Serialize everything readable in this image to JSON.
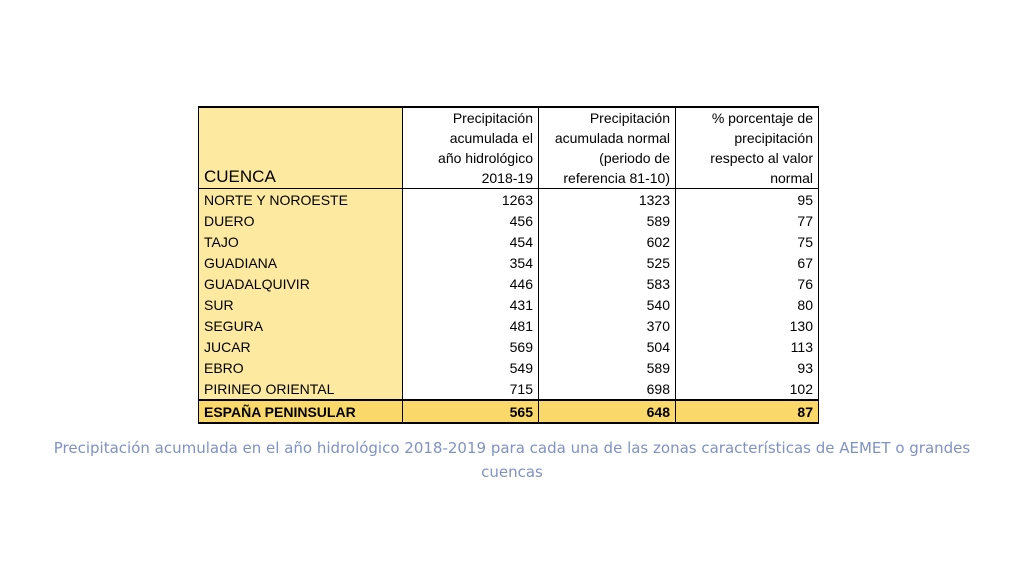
{
  "table": {
    "headers": {
      "cuenca": "CUENCA",
      "col_accumulated": [
        "Precipitación",
        "acumulada el",
        "año hidrológico",
        "2018-19"
      ],
      "col_normal": [
        "Precipitación",
        "acumulada normal",
        "(periodo de",
        "referencia 81-10)"
      ],
      "col_percent": [
        "% porcentaje de",
        "precipitación",
        "respecto al valor",
        "normal"
      ]
    },
    "rows": [
      {
        "name": "NORTE Y NOROESTE",
        "accumulated": "1263",
        "normal": "1323",
        "percent": "95"
      },
      {
        "name": "DUERO",
        "accumulated": "456",
        "normal": "589",
        "percent": "77"
      },
      {
        "name": "TAJO",
        "accumulated": "454",
        "normal": "602",
        "percent": "75"
      },
      {
        "name": "GUADIANA",
        "accumulated": "354",
        "normal": "525",
        "percent": "67"
      },
      {
        "name": "GUADALQUIVIR",
        "accumulated": "446",
        "normal": "583",
        "percent": "76"
      },
      {
        "name": "SUR",
        "accumulated": "431",
        "normal": "540",
        "percent": "80"
      },
      {
        "name": "SEGURA",
        "accumulated": "481",
        "normal": "370",
        "percent": "130"
      },
      {
        "name": "JUCAR",
        "accumulated": "569",
        "normal": "504",
        "percent": "113"
      },
      {
        "name": "EBRO",
        "accumulated": "549",
        "normal": "589",
        "percent": "93"
      },
      {
        "name": "PIRINEO ORIENTAL",
        "accumulated": "715",
        "normal": "698",
        "percent": "102"
      }
    ],
    "total": {
      "name": "ESPAÑA PENINSULAR",
      "accumulated": "565",
      "normal": "648",
      "percent": "87"
    }
  },
  "caption": {
    "line1": "Precipitación acumulada en el año hidrológico 2018-2019 para cada una de las zonas características de AEMET o grandes",
    "line2": "cuencas"
  },
  "colors": {
    "header_fill": "#fde9a0",
    "total_fill": "#fbd86a",
    "caption_text": "#7f92c6"
  }
}
